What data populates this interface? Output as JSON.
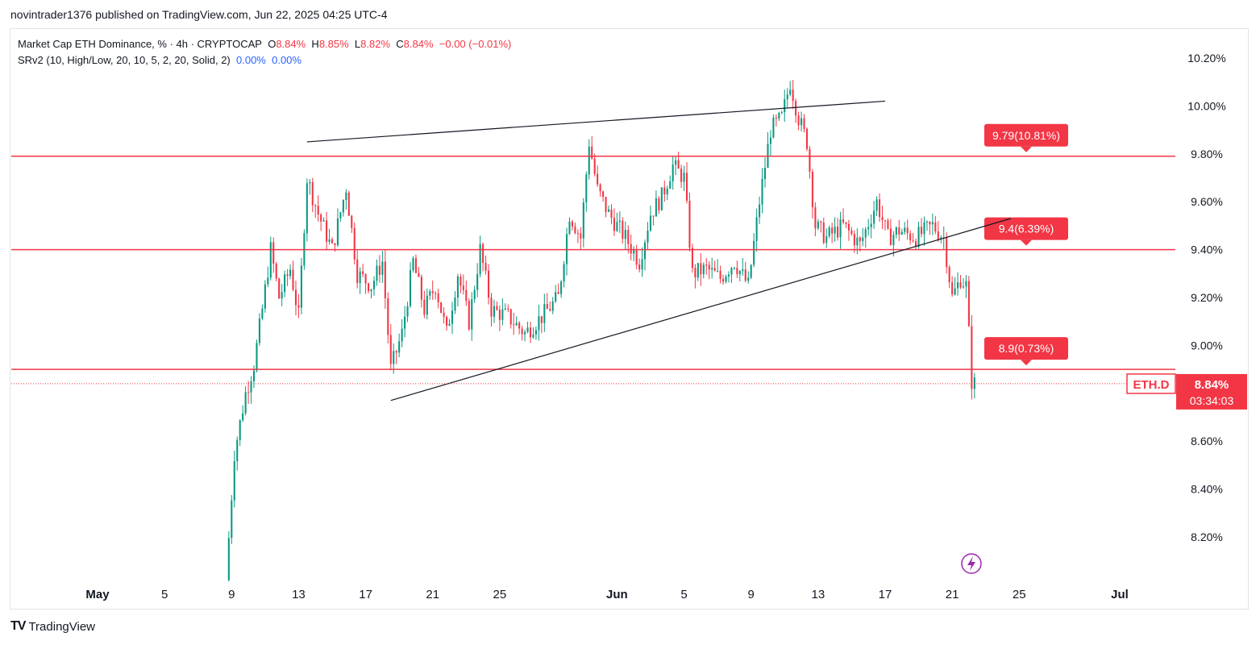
{
  "header": {
    "published_line": "novintrader1376 published on TradingView.com, Jun 22, 2025 04:25 UTC-4"
  },
  "legend": {
    "symbol_desc": "Market Cap ETH Dominance, % · 4h · CRYPTOCAP",
    "o_label": "O",
    "o_value": "8.84%",
    "h_label": "H",
    "h_value": "8.85%",
    "l_label": "L",
    "l_value": "8.82%",
    "c_label": "C",
    "c_value": "8.84%",
    "change": "−0.00 (−0.01%)",
    "indicator": "SRv2 (10, High/Low, 20, 10, 5, 2, 20, Solid, 2)",
    "ind_v1": "0.00%",
    "ind_v2": "0.00%"
  },
  "footer": {
    "brand": "TradingView",
    "logo": "TV"
  },
  "colors": {
    "up": "#089981",
    "down": "#f23645",
    "level_line": "#f23645",
    "trend_line": "#131722",
    "badge": "#f23645",
    "bolt": "#9c27b0"
  },
  "chart_data": {
    "type": "candlestick",
    "symbol": "ETH.D",
    "timeframe": "4h",
    "ylim": [
      8.0,
      10.3
    ],
    "y_ticks": [
      "10.20%",
      "10.00%",
      "9.80%",
      "9.60%",
      "9.40%",
      "9.20%",
      "9.00%",
      "8.60%",
      "8.40%",
      "8.20%"
    ],
    "y_tick_values": [
      10.2,
      10.0,
      9.8,
      9.6,
      9.4,
      9.2,
      9.0,
      8.6,
      8.4,
      8.2
    ],
    "x_ticks": [
      {
        "label": "May",
        "date": "2025-05-01",
        "month": true
      },
      {
        "label": "5",
        "date": "2025-05-05"
      },
      {
        "label": "9",
        "date": "2025-05-09"
      },
      {
        "label": "13",
        "date": "2025-05-13"
      },
      {
        "label": "17",
        "date": "2025-05-17"
      },
      {
        "label": "21",
        "date": "2025-05-21"
      },
      {
        "label": "25",
        "date": "2025-05-25"
      },
      {
        "label": "Jun",
        "date": "2025-06-01",
        "month": true
      },
      {
        "label": "5",
        "date": "2025-06-05"
      },
      {
        "label": "9",
        "date": "2025-06-09"
      },
      {
        "label": "13",
        "date": "2025-06-13"
      },
      {
        "label": "17",
        "date": "2025-06-17"
      },
      {
        "label": "21",
        "date": "2025-06-21"
      },
      {
        "label": "25",
        "date": "2025-06-25"
      },
      {
        "label": "Jul",
        "date": "2025-07-01",
        "month": true
      }
    ],
    "levels": [
      {
        "value": 9.79,
        "label": "9.79(10.81%)"
      },
      {
        "value": 9.4,
        "label": "9.4(6.39%)"
      },
      {
        "value": 8.9,
        "label": "8.9(0.73%)"
      }
    ],
    "trendlines": [
      {
        "from": {
          "date": "2025-05-13T12:00",
          "value": 9.85
        },
        "to": {
          "date": "2025-06-17T00:00",
          "value": 10.02
        }
      },
      {
        "from": {
          "date": "2025-05-18T12:00",
          "value": 8.77
        },
        "to": {
          "date": "2025-06-24T12:00",
          "value": 9.53
        }
      }
    ],
    "last_price": {
      "value": 8.84,
      "label": "8.84%",
      "countdown": "03:34:03",
      "symbol_label": "ETH.D"
    },
    "price_path": [
      {
        "date": "2025-05-08T16:00",
        "value": 8.02
      },
      {
        "date": "2025-05-09T04:00",
        "value": 8.55
      },
      {
        "date": "2025-05-09T20:00",
        "value": 8.8
      },
      {
        "date": "2025-05-10T08:00",
        "value": 8.92
      },
      {
        "date": "2025-05-10T20:00",
        "value": 9.15
      },
      {
        "date": "2025-05-11T08:00",
        "value": 9.4
      },
      {
        "date": "2025-05-11T20:00",
        "value": 9.2
      },
      {
        "date": "2025-05-12T12:00",
        "value": 9.32
      },
      {
        "date": "2025-05-13T00:00",
        "value": 9.12
      },
      {
        "date": "2025-05-13T12:00",
        "value": 9.7
      },
      {
        "date": "2025-05-14T04:00",
        "value": 9.55
      },
      {
        "date": "2025-05-15T00:00",
        "value": 9.4
      },
      {
        "date": "2025-05-15T20:00",
        "value": 9.66
      },
      {
        "date": "2025-05-16T12:00",
        "value": 9.3
      },
      {
        "date": "2025-05-17T08:00",
        "value": 9.25
      },
      {
        "date": "2025-05-18T00:00",
        "value": 9.35
      },
      {
        "date": "2025-05-18T12:00",
        "value": 8.9
      },
      {
        "date": "2025-05-19T04:00",
        "value": 9.05
      },
      {
        "date": "2025-05-19T20:00",
        "value": 9.35
      },
      {
        "date": "2025-05-20T12:00",
        "value": 9.15
      },
      {
        "date": "2025-05-21T04:00",
        "value": 9.25
      },
      {
        "date": "2025-05-21T20:00",
        "value": 9.05
      },
      {
        "date": "2025-05-22T12:00",
        "value": 9.3
      },
      {
        "date": "2025-05-23T04:00",
        "value": 9.1
      },
      {
        "date": "2025-05-23T20:00",
        "value": 9.4
      },
      {
        "date": "2025-05-24T12:00",
        "value": 9.15
      },
      {
        "date": "2025-05-25T12:00",
        "value": 9.12
      },
      {
        "date": "2025-05-26T12:00",
        "value": 9.05
      },
      {
        "date": "2025-05-27T12:00",
        "value": 9.12
      },
      {
        "date": "2025-05-28T12:00",
        "value": 9.2
      },
      {
        "date": "2025-05-29T04:00",
        "value": 9.55
      },
      {
        "date": "2025-05-29T20:00",
        "value": 9.45
      },
      {
        "date": "2025-05-30T08:00",
        "value": 9.85
      },
      {
        "date": "2025-05-30T20:00",
        "value": 9.65
      },
      {
        "date": "2025-05-31T12:00",
        "value": 9.55
      },
      {
        "date": "2025-06-01T12:00",
        "value": 9.45
      },
      {
        "date": "2025-06-02T08:00",
        "value": 9.35
      },
      {
        "date": "2025-06-03T00:00",
        "value": 9.55
      },
      {
        "date": "2025-06-03T16:00",
        "value": 9.62
      },
      {
        "date": "2025-06-04T08:00",
        "value": 9.75
      },
      {
        "date": "2025-06-05T00:00",
        "value": 9.7
      },
      {
        "date": "2025-06-05T12:00",
        "value": 9.3
      },
      {
        "date": "2025-06-06T08:00",
        "value": 9.32
      },
      {
        "date": "2025-06-07T04:00",
        "value": 9.28
      },
      {
        "date": "2025-06-08T00:00",
        "value": 9.35
      },
      {
        "date": "2025-06-08T20:00",
        "value": 9.25
      },
      {
        "date": "2025-06-09T12:00",
        "value": 9.6
      },
      {
        "date": "2025-06-10T04:00",
        "value": 9.9
      },
      {
        "date": "2025-06-10T20:00",
        "value": 9.95
      },
      {
        "date": "2025-06-11T08:00",
        "value": 10.1
      },
      {
        "date": "2025-06-11T20:00",
        "value": 9.95
      },
      {
        "date": "2025-06-12T08:00",
        "value": 9.85
      },
      {
        "date": "2025-06-12T20:00",
        "value": 9.5
      },
      {
        "date": "2025-06-13T12:00",
        "value": 9.45
      },
      {
        "date": "2025-06-14T12:00",
        "value": 9.5
      },
      {
        "date": "2025-06-15T12:00",
        "value": 9.42
      },
      {
        "date": "2025-06-16T12:00",
        "value": 9.6
      },
      {
        "date": "2025-06-17T04:00",
        "value": 9.45
      },
      {
        "date": "2025-06-17T20:00",
        "value": 9.48
      },
      {
        "date": "2025-06-18T20:00",
        "value": 9.45
      },
      {
        "date": "2025-06-19T20:00",
        "value": 9.5
      },
      {
        "date": "2025-06-20T12:00",
        "value": 9.45
      },
      {
        "date": "2025-06-21T00:00",
        "value": 9.2
      },
      {
        "date": "2025-06-21T12:00",
        "value": 9.28
      },
      {
        "date": "2025-06-21T20:00",
        "value": 9.25
      },
      {
        "date": "2025-06-22T04:00",
        "value": 8.85
      },
      {
        "date": "2025-06-22T08:00",
        "value": 8.84
      }
    ]
  }
}
